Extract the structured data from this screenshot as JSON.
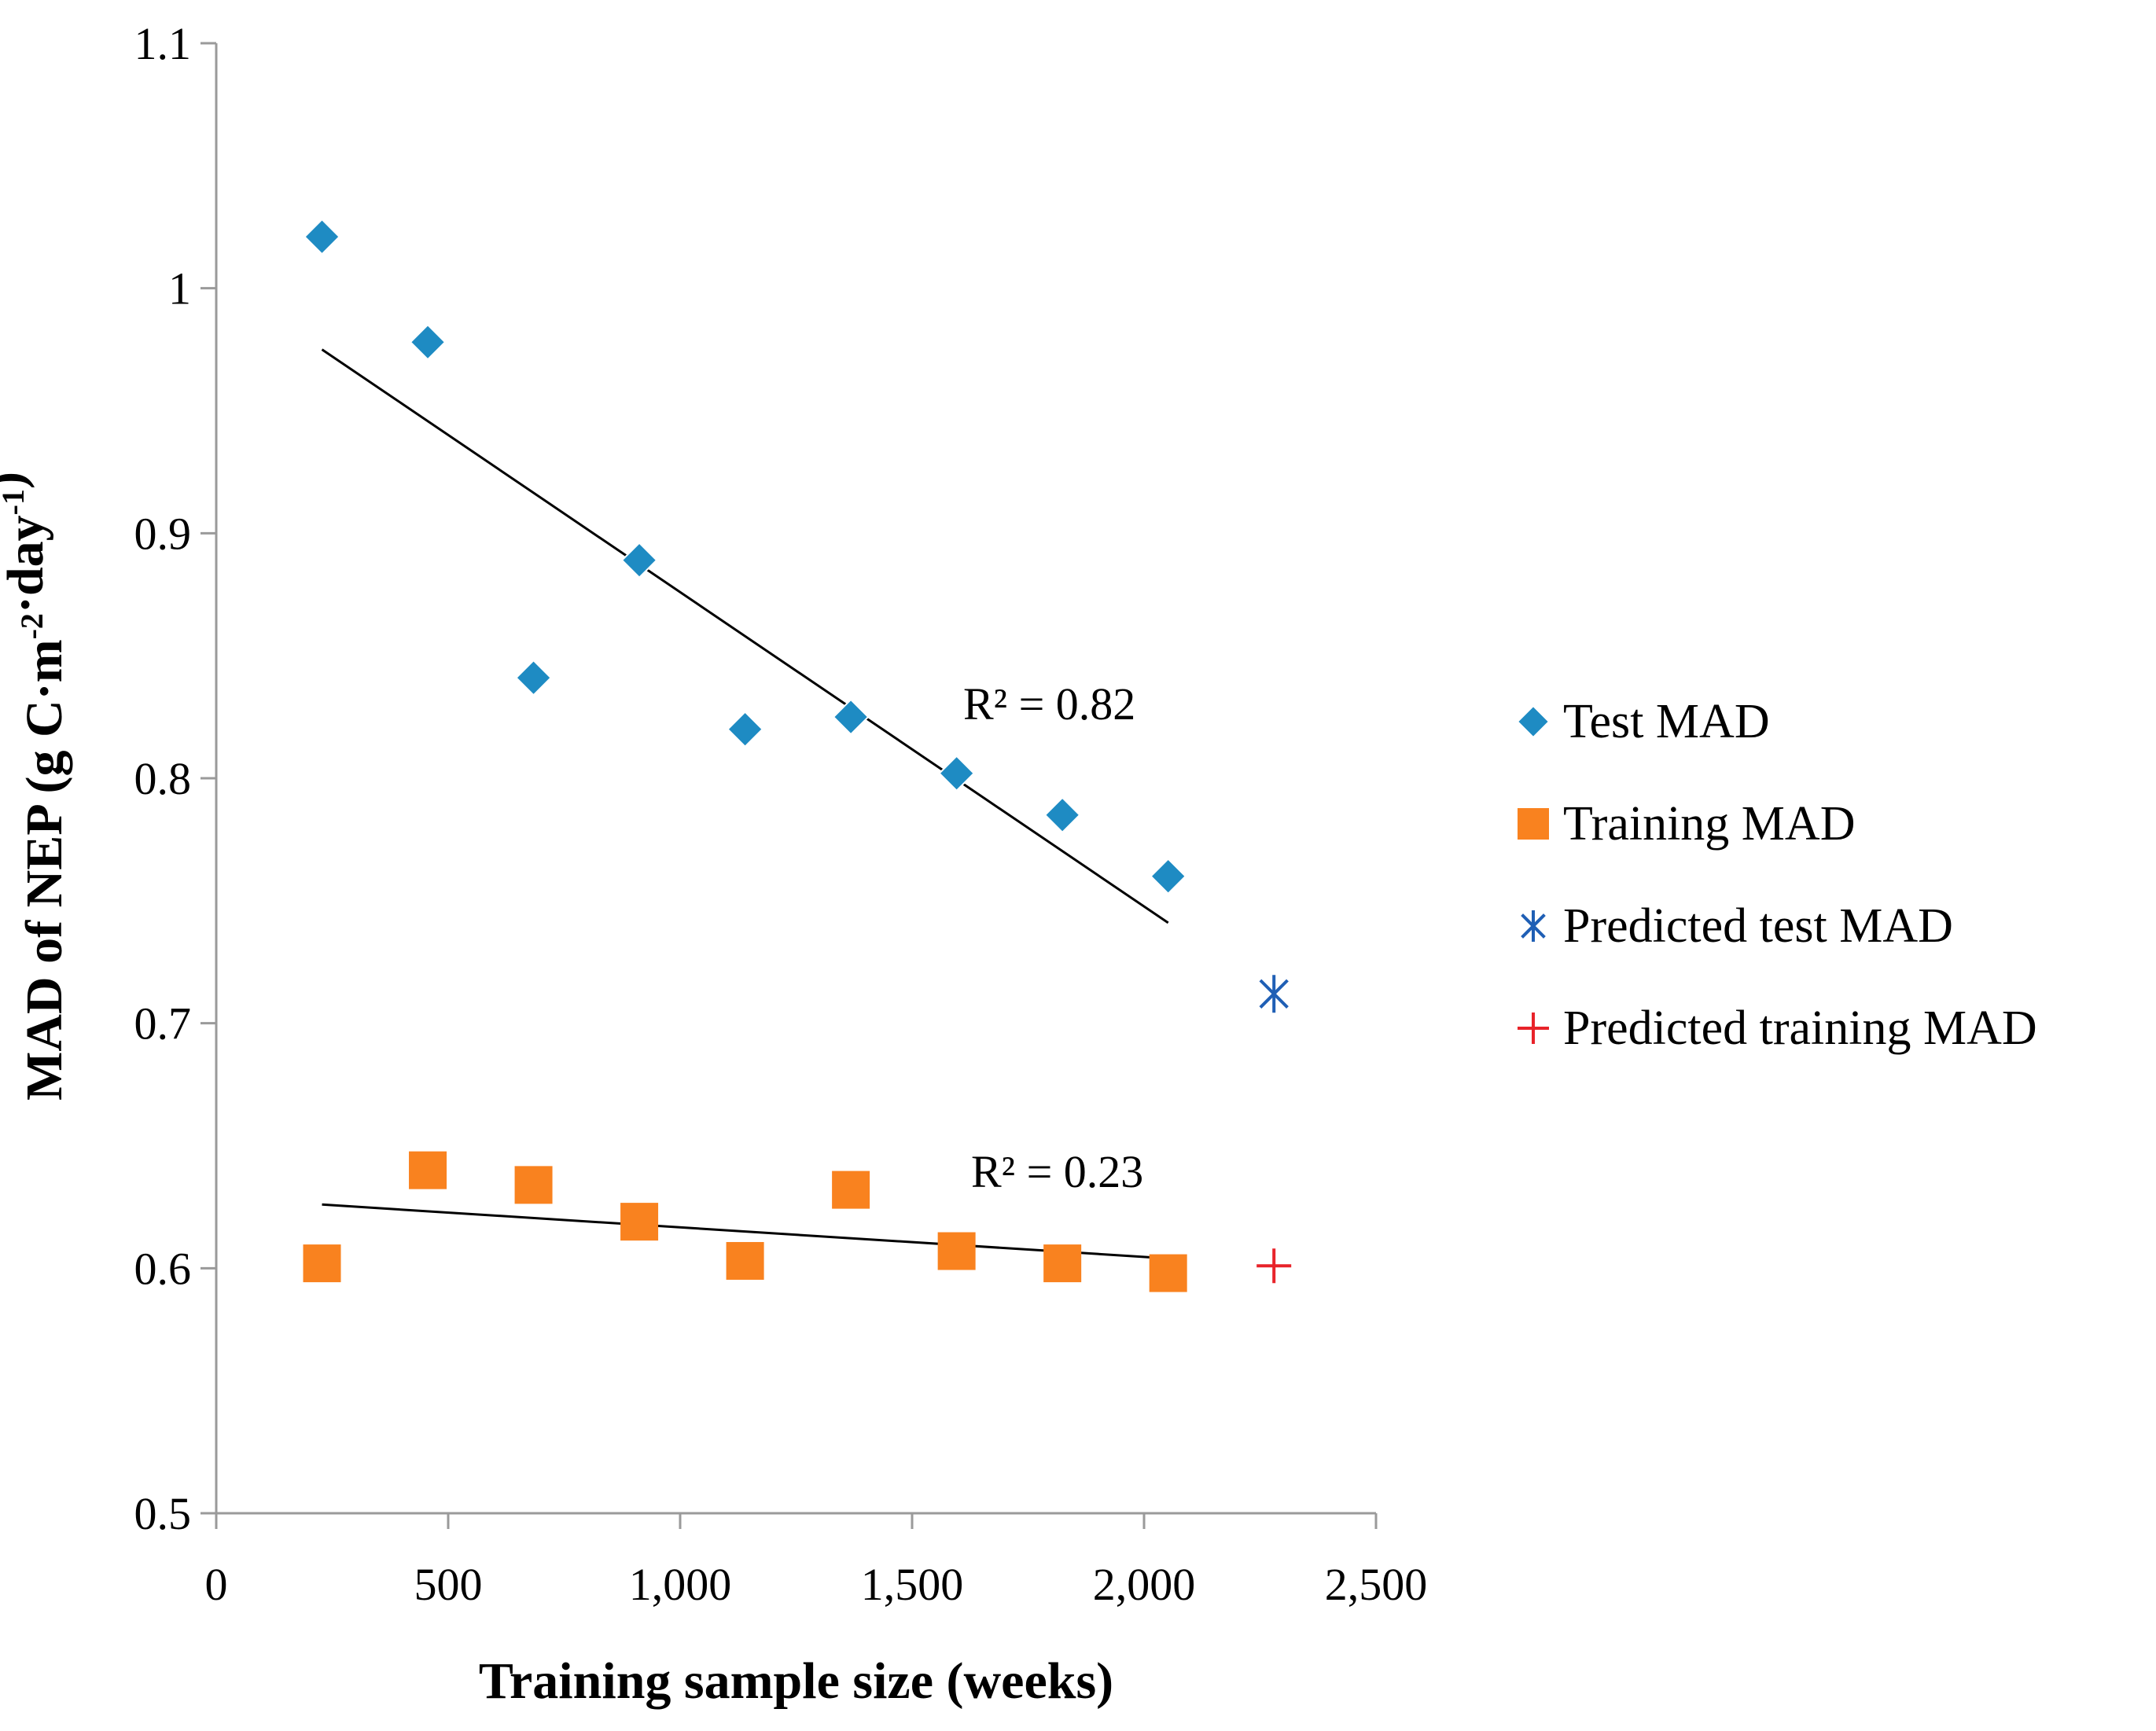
{
  "chart_data": {
    "type": "scatter",
    "title": "",
    "xlabel": "Training sample size (weeks)",
    "ylabel_parts": {
      "main": "MAD of NEP (g C·m",
      "sup1": "-2",
      "mid": "·day",
      "sup2": "-1",
      "end": ")"
    },
    "xlim": [
      0,
      2500
    ],
    "ylim": [
      0.5,
      1.1
    ],
    "x_ticks": [
      0,
      500,
      1000,
      1500,
      2000,
      2500
    ],
    "x_tick_labels": [
      "0",
      "500",
      "1,000",
      "1,500",
      "2,000",
      "2,500"
    ],
    "y_ticks": [
      0.5,
      0.6,
      0.7,
      0.8,
      0.9,
      1.0,
      1.1
    ],
    "y_tick_labels": [
      "0.5",
      "0.6",
      "0.7",
      "0.8",
      "0.9",
      "1",
      "1.1"
    ],
    "grid": false,
    "legend_position": "right",
    "series": [
      {
        "name": "Test MAD",
        "marker": "diamond",
        "color": "#1e8bc3",
        "x": [
          228,
          456,
          684,
          912,
          1140,
          1368,
          1596,
          1824,
          2052
        ],
        "y": [
          1.021,
          0.978,
          0.841,
          0.889,
          0.82,
          0.825,
          0.802,
          0.785,
          0.76
        ],
        "trendline": {
          "x0": 228,
          "y0": 0.975,
          "x1": 2052,
          "y1": 0.741,
          "r2_label": "R² = 0.82"
        }
      },
      {
        "name": "Training MAD",
        "marker": "square",
        "color": "#f9821f",
        "x": [
          228,
          456,
          684,
          912,
          1140,
          1368,
          1596,
          1824,
          2052
        ],
        "y": [
          0.602,
          0.64,
          0.634,
          0.619,
          0.603,
          0.632,
          0.607,
          0.602,
          0.598
        ],
        "trendline": {
          "x0": 228,
          "y0": 0.626,
          "x1": 2052,
          "y1": 0.604,
          "r2_label": "R² = 0.23"
        }
      },
      {
        "name": "Predicted test MAD",
        "marker": "asterisk",
        "color": "#1f5fb5",
        "x": [
          2280
        ],
        "y": [
          0.712
        ]
      },
      {
        "name": "Predicted training MAD",
        "marker": "plus",
        "color": "#e8232a",
        "x": [
          2280
        ],
        "y": [
          0.601
        ]
      }
    ]
  }
}
